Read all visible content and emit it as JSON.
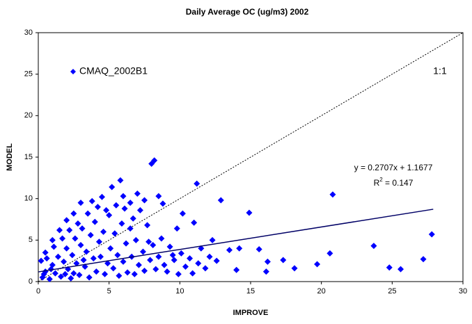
{
  "chart_data": {
    "type": "scatter",
    "title": "Daily Average OC (ug/m3) 2002",
    "x_label": "IMPROVE",
    "y_label": "MODEL",
    "xlim": [
      0,
      30
    ],
    "ylim": [
      0,
      30
    ],
    "xticks": [
      0,
      5,
      10,
      15,
      20,
      25,
      30
    ],
    "yticks": [
      0,
      5,
      10,
      15,
      20,
      25,
      30
    ],
    "legend": "upper left",
    "series": [
      {
        "name": "CMAQ_2002B1",
        "color": "#0000ff",
        "x": [
          8.2,
          8.0,
          5.8,
          11.2,
          20.8,
          12.9,
          14.9,
          27.8,
          23.7,
          27.2,
          24.8,
          25.6,
          20.6,
          19.7,
          18.1,
          17.3,
          16.2,
          16.1,
          15.6,
          14.2,
          14.0,
          13.5,
          12.6,
          12.3,
          11.5,
          11.0,
          10.2,
          9.8,
          9.5,
          8.8,
          8.5,
          7.5,
          7.0,
          6.5,
          6.0,
          5.2,
          4.5,
          3.8,
          3.0,
          2.5,
          2.0,
          1.5,
          1.0,
          0.5,
          0.2,
          0.3,
          0.5,
          0.8,
          1.0,
          1.2,
          1.4,
          1.6,
          1.8,
          2.0,
          2.1,
          2.3,
          2.4,
          2.6,
          2.7,
          2.9,
          3.0,
          3.1,
          3.3,
          3.4,
          3.6,
          3.7,
          3.9,
          4.0,
          4.1,
          4.3,
          4.4,
          4.6,
          4.7,
          4.9,
          5.0,
          5.1,
          5.3,
          5.4,
          5.6,
          5.7,
          5.9,
          6.0,
          6.2,
          6.3,
          6.5,
          6.6,
          6.8,
          6.9,
          7.1,
          7.2,
          7.4,
          7.5,
          7.7,
          7.9,
          8.1,
          8.3,
          8.5,
          8.7,
          8.9,
          9.1,
          9.3,
          9.6,
          9.9,
          10.1,
          10.4,
          10.7,
          10.9,
          11.3,
          11.8,
          12.1,
          0.6,
          1.1,
          1.7,
          2.2,
          2.8,
          3.5,
          4.2,
          4.8,
          3.2,
          2.5,
          1.9,
          0.9,
          0.4,
          6.1,
          7.8,
          5.5,
          6.7
        ],
        "values": [
          14.6,
          14.2,
          12.2,
          11.8,
          10.5,
          9.8,
          8.3,
          5.7,
          4.3,
          2.7,
          1.7,
          1.5,
          3.4,
          2.1,
          1.6,
          2.6,
          2.4,
          1.2,
          3.9,
          4.0,
          1.4,
          3.8,
          2.5,
          5.0,
          4.0,
          7.1,
          8.2,
          6.4,
          3.2,
          9.4,
          10.3,
          9.8,
          10.6,
          9.5,
          10.3,
          11.4,
          10.2,
          9.7,
          9.5,
          8.2,
          7.4,
          6.2,
          5.0,
          3.5,
          2.5,
          0.5,
          1.2,
          0.3,
          2.0,
          1.0,
          3.0,
          0.6,
          2.4,
          4.0,
          1.5,
          0.4,
          3.2,
          5.2,
          2.2,
          0.8,
          4.4,
          6.4,
          1.8,
          3.6,
          0.5,
          5.6,
          2.8,
          7.2,
          1.2,
          4.8,
          3.0,
          6.0,
          0.9,
          2.2,
          8.0,
          4.0,
          1.6,
          5.8,
          3.2,
          0.7,
          7.0,
          2.4,
          4.6,
          1.1,
          6.4,
          3.0,
          0.9,
          5.0,
          2.0,
          8.6,
          3.6,
          1.3,
          6.8,
          2.6,
          4.4,
          1.5,
          3.0,
          5.2,
          2.0,
          1.2,
          4.2,
          2.6,
          0.9,
          3.4,
          1.8,
          2.8,
          1.0,
          2.2,
          1.6,
          3.0,
          2.8,
          4.2,
          5.2,
          6.2,
          7.0,
          8.2,
          9.0,
          8.6,
          2.6,
          1.0,
          0.9,
          1.5,
          0.9,
          8.8,
          4.8,
          9.2,
          7.6
        ]
      }
    ],
    "trendline": {
      "slope": 0.2707,
      "intercept": 1.1677,
      "x_range": [
        0,
        27.9
      ],
      "color": "#000066"
    },
    "equation": "y = 0.2707x + 1.1677",
    "r_squared": {
      "base": "R",
      "sup": "2",
      "rest": " = 0.147"
    },
    "reference_line": {
      "label": "1:1",
      "slope": 1,
      "intercept": 0
    }
  }
}
